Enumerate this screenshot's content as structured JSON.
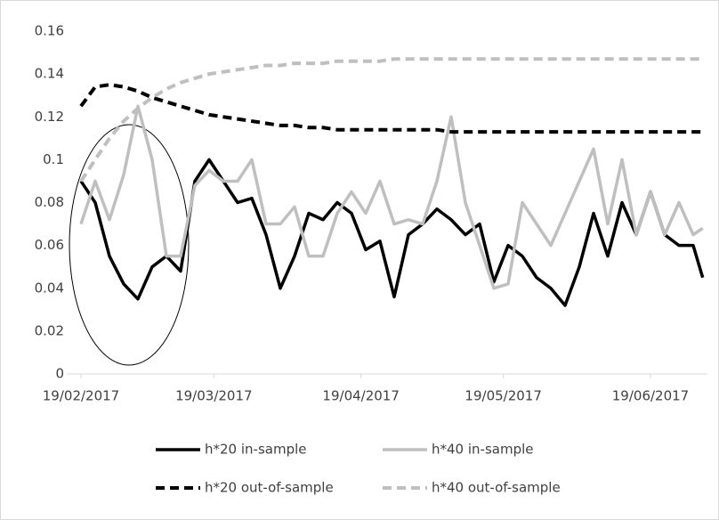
{
  "chart_data": {
    "type": "line",
    "x": [
      "19/02/2017",
      "22/02/2017",
      "25/02/2017",
      "28/02/2017",
      "03/03/2017",
      "06/03/2017",
      "09/03/2017",
      "12/03/2017",
      "15/03/2017",
      "18/03/2017",
      "21/03/2017",
      "24/03/2017",
      "27/03/2017",
      "30/03/2017",
      "02/04/2017",
      "05/04/2017",
      "08/04/2017",
      "11/04/2017",
      "14/04/2017",
      "17/04/2017",
      "20/04/2017",
      "23/04/2017",
      "26/04/2017",
      "29/04/2017",
      "02/05/2017",
      "05/05/2017",
      "08/05/2017",
      "11/05/2017",
      "14/05/2017",
      "17/05/2017",
      "20/05/2017",
      "23/05/2017",
      "26/05/2017",
      "29/05/2017",
      "01/06/2017",
      "04/06/2017",
      "07/06/2017",
      "10/06/2017",
      "13/06/2017",
      "16/06/2017",
      "19/06/2017",
      "22/06/2017",
      "25/06/2017",
      "28/06/2017",
      "30/06/2017"
    ],
    "xlim": [
      "16/02/2017",
      "01/07/2017"
    ],
    "xticks": [
      "19/02/2017",
      "19/03/2017",
      "19/04/2017",
      "19/05/2017",
      "19/06/2017"
    ],
    "ylim": [
      0,
      0.16
    ],
    "yticks": [
      0,
      0.02,
      0.04,
      0.06,
      0.08,
      0.1,
      0.12,
      0.14,
      0.16
    ],
    "series": [
      {
        "name": "h*20 in-sample",
        "color": "#000000",
        "dashed": false,
        "values": [
          0.09,
          0.08,
          0.055,
          0.042,
          0.035,
          0.05,
          0.055,
          0.048,
          0.09,
          0.1,
          0.09,
          0.08,
          0.082,
          0.065,
          0.04,
          0.055,
          0.075,
          0.072,
          0.08,
          0.075,
          0.058,
          0.062,
          0.036,
          0.065,
          0.07,
          0.077,
          0.072,
          0.065,
          0.07,
          0.043,
          0.06,
          0.055,
          0.045,
          0.04,
          0.032,
          0.05,
          0.075,
          0.055,
          0.08,
          0.065,
          0.085,
          0.065,
          0.06,
          0.06,
          0.045
        ]
      },
      {
        "name": "h*40 in-sample",
        "color": "#bfbfbf",
        "dashed": false,
        "values": [
          0.07,
          0.09,
          0.072,
          0.093,
          0.125,
          0.1,
          0.055,
          0.055,
          0.088,
          0.095,
          0.09,
          0.09,
          0.1,
          0.07,
          0.07,
          0.078,
          0.055,
          0.055,
          0.075,
          0.085,
          0.075,
          0.09,
          0.07,
          0.072,
          0.07,
          0.09,
          0.12,
          0.08,
          0.06,
          0.04,
          0.042,
          0.08,
          0.07,
          0.06,
          0.075,
          0.09,
          0.105,
          0.07,
          0.1,
          0.065,
          0.085,
          0.065,
          0.08,
          0.065,
          0.068
        ]
      },
      {
        "name": "h*20 out-of-sample",
        "color": "#000000",
        "dashed": true,
        "values": [
          0.125,
          0.134,
          0.135,
          0.134,
          0.132,
          0.129,
          0.127,
          0.125,
          0.123,
          0.121,
          0.12,
          0.119,
          0.118,
          0.117,
          0.116,
          0.116,
          0.115,
          0.115,
          0.114,
          0.114,
          0.114,
          0.114,
          0.114,
          0.114,
          0.114,
          0.114,
          0.113,
          0.113,
          0.113,
          0.113,
          0.113,
          0.113,
          0.113,
          0.113,
          0.113,
          0.113,
          0.113,
          0.113,
          0.113,
          0.113,
          0.113,
          0.113,
          0.113,
          0.113,
          0.113
        ]
      },
      {
        "name": "h*40 out-of-sample",
        "color": "#bfbfbf",
        "dashed": true,
        "values": [
          0.09,
          0.1,
          0.11,
          0.118,
          0.124,
          0.129,
          0.133,
          0.136,
          0.138,
          0.14,
          0.141,
          0.142,
          0.143,
          0.144,
          0.144,
          0.145,
          0.145,
          0.145,
          0.146,
          0.146,
          0.146,
          0.146,
          0.147,
          0.147,
          0.147,
          0.147,
          0.147,
          0.147,
          0.147,
          0.147,
          0.147,
          0.147,
          0.147,
          0.147,
          0.147,
          0.147,
          0.147,
          0.147,
          0.147,
          0.147,
          0.147,
          0.147,
          0.147,
          0.147,
          0.147
        ]
      }
    ]
  }
}
